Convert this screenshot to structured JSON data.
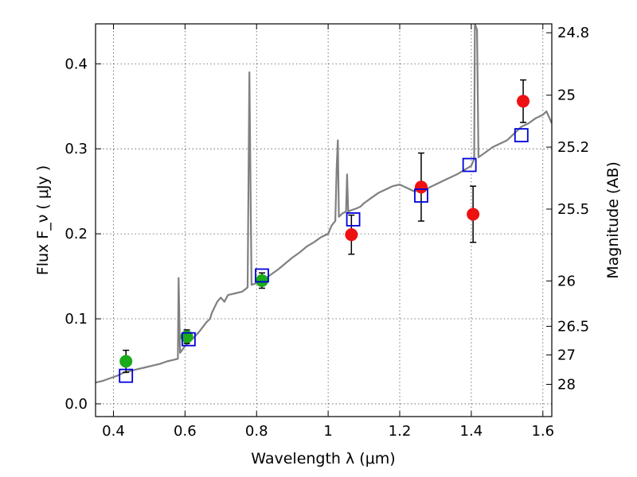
{
  "chart_data": {
    "type": "scatter",
    "xlabel": "Wavelength  λ (μm)",
    "ylabel": "Flux  F_ν  ( μJy )",
    "ylabel_right": "Magnitude (AB)",
    "xlim": [
      0.35,
      1.625
    ],
    "ylim": [
      -0.015,
      0.447
    ],
    "grid": true,
    "x_ticks": [
      0.4,
      0.6,
      0.8,
      1.0,
      1.2,
      1.4,
      1.6
    ],
    "x_tick_labels": [
      "0.4",
      "0.6",
      "0.8",
      "1",
      "1.2",
      "1.4",
      "1.6"
    ],
    "y_ticks": [
      0.0,
      0.1,
      0.2,
      0.3,
      0.4
    ],
    "y_tick_labels": [
      "0.0",
      "0.1",
      "0.2",
      "0.3",
      "0.4"
    ],
    "right_ticks": [
      {
        "label": "24.8",
        "mag": 24.8
      },
      {
        "label": "25",
        "mag": 25.0
      },
      {
        "label": "25.2",
        "mag": 25.2
      },
      {
        "label": "25.5",
        "mag": 25.5
      },
      {
        "label": "26",
        "mag": 26.0
      },
      {
        "label": "26.5",
        "mag": 26.5
      },
      {
        "label": "27",
        "mag": 27.0
      },
      {
        "label": "28",
        "mag": 28.0
      }
    ],
    "colors": {
      "spectrum": "#808080",
      "green": "#1aaa1a",
      "red": "#ee1111",
      "model_box": "#0000dd",
      "errorbar": "#000000",
      "grid": "#555555"
    },
    "series": [
      {
        "kind": "line",
        "color": "#808080",
        "points": [
          [
            0.35,
            0.025
          ],
          [
            0.37,
            0.027
          ],
          [
            0.39,
            0.03
          ],
          [
            0.41,
            0.033
          ],
          [
            0.43,
            0.037
          ],
          [
            0.45,
            0.039
          ],
          [
            0.47,
            0.041
          ],
          [
            0.49,
            0.043
          ],
          [
            0.51,
            0.045
          ],
          [
            0.53,
            0.047
          ],
          [
            0.55,
            0.05
          ],
          [
            0.57,
            0.052
          ],
          [
            0.58,
            0.053
          ],
          [
            0.582,
            0.148
          ],
          [
            0.586,
            0.06
          ],
          [
            0.6,
            0.068
          ],
          [
            0.62,
            0.076
          ],
          [
            0.64,
            0.085
          ],
          [
            0.66,
            0.096
          ],
          [
            0.67,
            0.1
          ],
          [
            0.675,
            0.107
          ],
          [
            0.69,
            0.12
          ],
          [
            0.7,
            0.125
          ],
          [
            0.71,
            0.12
          ],
          [
            0.72,
            0.128
          ],
          [
            0.74,
            0.13
          ],
          [
            0.76,
            0.132
          ],
          [
            0.775,
            0.137
          ],
          [
            0.78,
            0.39
          ],
          [
            0.786,
            0.14
          ],
          [
            0.8,
            0.142
          ],
          [
            0.82,
            0.146
          ],
          [
            0.84,
            0.152
          ],
          [
            0.86,
            0.158
          ],
          [
            0.88,
            0.165
          ],
          [
            0.9,
            0.172
          ],
          [
            0.92,
            0.178
          ],
          [
            0.94,
            0.185
          ],
          [
            0.96,
            0.19
          ],
          [
            0.98,
            0.196
          ],
          [
            1.0,
            0.2
          ],
          [
            1.01,
            0.21
          ],
          [
            1.02,
            0.215
          ],
          [
            1.024,
            0.28
          ],
          [
            1.027,
            0.31
          ],
          [
            1.03,
            0.22
          ],
          [
            1.04,
            0.224
          ],
          [
            1.05,
            0.226
          ],
          [
            1.053,
            0.27
          ],
          [
            1.056,
            0.226
          ],
          [
            1.06,
            0.227
          ],
          [
            1.08,
            0.23
          ],
          [
            1.09,
            0.232
          ],
          [
            1.1,
            0.236
          ],
          [
            1.12,
            0.242
          ],
          [
            1.14,
            0.248
          ],
          [
            1.16,
            0.252
          ],
          [
            1.18,
            0.256
          ],
          [
            1.2,
            0.258
          ],
          [
            1.22,
            0.254
          ],
          [
            1.24,
            0.25
          ],
          [
            1.26,
            0.252
          ],
          [
            1.28,
            0.254
          ],
          [
            1.3,
            0.258
          ],
          [
            1.32,
            0.262
          ],
          [
            1.34,
            0.266
          ],
          [
            1.36,
            0.27
          ],
          [
            1.38,
            0.275
          ],
          [
            1.4,
            0.28
          ],
          [
            1.408,
            0.288
          ],
          [
            1.41,
            0.447
          ],
          [
            1.416,
            0.44
          ],
          [
            1.42,
            0.29
          ],
          [
            1.44,
            0.296
          ],
          [
            1.46,
            0.302
          ],
          [
            1.48,
            0.306
          ],
          [
            1.5,
            0.31
          ],
          [
            1.52,
            0.318
          ],
          [
            1.54,
            0.326
          ],
          [
            1.56,
            0.33
          ],
          [
            1.58,
            0.336
          ],
          [
            1.6,
            0.34
          ],
          [
            1.61,
            0.344
          ],
          [
            1.625,
            0.33
          ]
        ]
      },
      {
        "kind": "points",
        "color": "#1aaa1a",
        "points": [
          {
            "x": 0.435,
            "y": 0.05,
            "err": 0.013
          },
          {
            "x": 0.605,
            "y": 0.079,
            "err": 0.008
          },
          {
            "x": 0.815,
            "y": 0.145,
            "err": 0.009
          }
        ]
      },
      {
        "kind": "points",
        "color": "#ee1111",
        "points": [
          {
            "x": 1.065,
            "y": 0.199,
            "err": 0.023
          },
          {
            "x": 1.26,
            "y": 0.255,
            "err": 0.04
          },
          {
            "x": 1.405,
            "y": 0.223,
            "err": 0.033
          },
          {
            "x": 1.545,
            "y": 0.356,
            "err": 0.025
          }
        ]
      },
      {
        "kind": "boxes",
        "color": "#0000dd",
        "points": [
          {
            "x": 0.435,
            "y": 0.033
          },
          {
            "x": 0.61,
            "y": 0.076
          },
          {
            "x": 0.815,
            "y": 0.151
          },
          {
            "x": 1.07,
            "y": 0.217
          },
          {
            "x": 1.26,
            "y": 0.245
          },
          {
            "x": 1.395,
            "y": 0.281
          },
          {
            "x": 1.54,
            "y": 0.316
          }
        ]
      }
    ]
  }
}
